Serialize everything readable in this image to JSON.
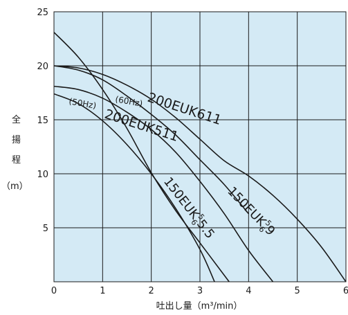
{
  "chart_data": {
    "type": "line",
    "title": "",
    "xlabel": "吐出し量（m³/min）",
    "ylabel_chars": [
      "全",
      "揚",
      "程"
    ],
    "ylabel_unit": "（m）",
    "xlim": [
      0,
      6
    ],
    "ylim": [
      0,
      25
    ],
    "xticks": [
      "0",
      "1",
      "2",
      "3",
      "4",
      "5",
      "6"
    ],
    "yticks": [
      "5",
      "10",
      "15",
      "20",
      "25"
    ],
    "grid": true,
    "background": "#d4eaf5",
    "line_color": "#1a1a1a",
    "grid_color": "#1a1a1a",
    "series": [
      {
        "name": "200EUK611",
        "freq": "(60Hz)",
        "x": [
          0,
          0.5,
          1,
          1.5,
          2,
          2.5,
          3,
          3.5,
          4,
          4.5,
          5,
          5.5,
          6
        ],
        "y": [
          20,
          19.8,
          19.2,
          18.2,
          16.9,
          15.2,
          13.2,
          11.2,
          9.8,
          8.0,
          5.8,
          3.2,
          0
        ]
      },
      {
        "name": "200EUK511",
        "freq": "(50Hz)",
        "x": [
          0,
          0.5,
          1,
          1.5,
          2,
          2.5,
          3,
          3.5,
          4,
          4.5
        ],
        "y": [
          18.1,
          17.8,
          17.0,
          15.7,
          14.1,
          12.0,
          9.3,
          6.3,
          2.9,
          0
        ]
      },
      {
        "name": "150EUK",
        "sub": "6",
        "sup": "5",
        "suffix": "9",
        "x": [
          0,
          0.5,
          1,
          1.5,
          2,
          2.5,
          3,
          3.5,
          4
        ],
        "y": [
          20,
          19.6,
          18.7,
          17.2,
          15.5,
          13.6,
          11.3,
          9.0,
          6.3
        ]
      },
      {
        "name": "150EUK",
        "sub": "6",
        "sup": "5",
        "suffix": "5.5",
        "x": [
          0,
          0.5,
          1,
          1.5,
          2,
          2.5,
          3,
          3.5,
          3.6
        ],
        "y": [
          23.1,
          20.8,
          17.8,
          14.2,
          10.1,
          6.6,
          3.6,
          0.6,
          0
        ]
      },
      {
        "name": "",
        "x": [
          0,
          0.5,
          1,
          1.5,
          2,
          2.5,
          3,
          3.3
        ],
        "y": [
          17.4,
          16.5,
          14.9,
          12.7,
          10.0,
          6.8,
          3.0,
          0
        ]
      }
    ]
  }
}
